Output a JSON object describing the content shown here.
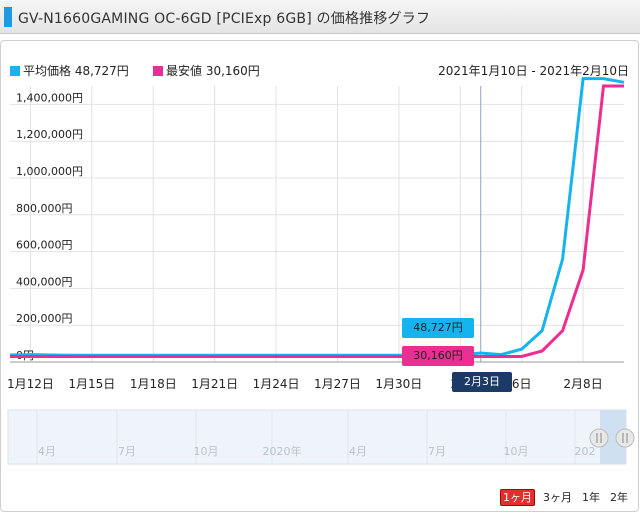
{
  "title": "GV-N1660GAMING OC-6GD [PCIExp 6GB] の価格推移グラフ",
  "legend": {
    "avg_label": "平均価格 48,727円",
    "min_label": "最安値 30,160円",
    "range": "2021年1月10日 - 2021年2月10日"
  },
  "colors": {
    "avg": "#15b4ef",
    "min": "#ec2d91",
    "tooltip_date": "#1b3a66"
  },
  "tooltips": {
    "avg": "48,727円",
    "min": "30,160円",
    "date": "2月3日"
  },
  "periods": [
    "1ヶ月",
    "3ヶ月",
    "1年",
    "2年"
  ],
  "navigator_labels": [
    "4月",
    "7月",
    "10月",
    "2020年",
    "4月",
    "7月",
    "10月",
    "202"
  ],
  "chart_data": {
    "type": "line",
    "ylim": [
      0,
      1500000
    ],
    "y_ticks": [
      {
        "value": 0,
        "label": "0円"
      },
      {
        "value": 200000,
        "label": "200,000円"
      },
      {
        "value": 400000,
        "label": "400,000円"
      },
      {
        "value": 600000,
        "label": "600,000円"
      },
      {
        "value": 800000,
        "label": "800,000円"
      },
      {
        "value": 1000000,
        "label": "1,000,000円"
      },
      {
        "value": 1200000,
        "label": "1,200,000円"
      },
      {
        "value": 1400000,
        "label": "1,400,000円"
      }
    ],
    "x_ticks": [
      {
        "day": 12,
        "label": "1月12日"
      },
      {
        "day": 15,
        "label": "1月15日"
      },
      {
        "day": 18,
        "label": "1月18日"
      },
      {
        "day": 21,
        "label": "1月21日"
      },
      {
        "day": 24,
        "label": "1月24日"
      },
      {
        "day": 27,
        "label": "1月27日"
      },
      {
        "day": 30,
        "label": "1月30日"
      },
      {
        "day": 33,
        "label": "2月"
      },
      {
        "day": 36,
        "label": "6日"
      },
      {
        "day": 39,
        "label": "2月8日"
      }
    ],
    "series": [
      {
        "name": "平均価格",
        "x": [
          11,
          12,
          13,
          14,
          15,
          16,
          17,
          18,
          19,
          20,
          21,
          22,
          23,
          24,
          25,
          26,
          27,
          28,
          29,
          30,
          31,
          32,
          33,
          34,
          35,
          36,
          37,
          38,
          39,
          40,
          41
        ],
        "values": [
          38000,
          40000,
          38000,
          37000,
          37000,
          37000,
          37000,
          37000,
          37000,
          37000,
          37000,
          37000,
          37000,
          37000,
          37000,
          37000,
          37000,
          37000,
          37000,
          37000,
          37000,
          37000,
          38000,
          48727,
          40000,
          70000,
          170000,
          560000,
          1540000,
          1540000,
          1520000
        ]
      },
      {
        "name": "最安値",
        "x": [
          11,
          12,
          13,
          14,
          15,
          16,
          17,
          18,
          19,
          20,
          21,
          22,
          23,
          24,
          25,
          26,
          27,
          28,
          29,
          30,
          31,
          32,
          33,
          34,
          35,
          36,
          37,
          38,
          39,
          40,
          41
        ],
        "values": [
          30160,
          30160,
          30160,
          30160,
          30160,
          30160,
          30160,
          30160,
          30160,
          30160,
          30160,
          30160,
          30160,
          30160,
          30160,
          30160,
          30160,
          30160,
          30160,
          30160,
          30160,
          30160,
          30160,
          30160,
          30160,
          30160,
          60000,
          170000,
          500000,
          1500000,
          1500000
        ]
      }
    ],
    "hover_day": 34
  }
}
